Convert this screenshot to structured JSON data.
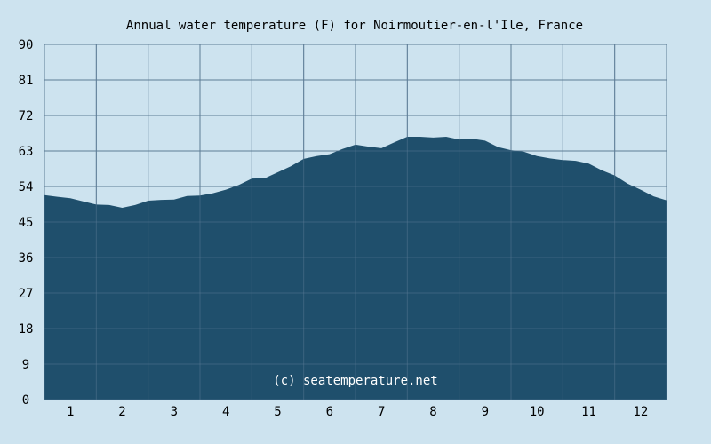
{
  "chart_data": {
    "type": "area",
    "title": "Annual water temperature (F) for Noirmoutier-en-l'Ile, France",
    "xlabel": "",
    "ylabel": "",
    "x_ticks": [
      "1",
      "2",
      "3",
      "4",
      "5",
      "6",
      "7",
      "8",
      "9",
      "10",
      "11",
      "12"
    ],
    "y_ticks": [
      "0",
      "9",
      "18",
      "27",
      "36",
      "45",
      "54",
      "63",
      "72",
      "81",
      "90"
    ],
    "xlim": [
      0.5,
      12.5
    ],
    "ylim": [
      0,
      90
    ],
    "grid": true,
    "x": [
      0.5,
      0.75,
      1.0,
      1.25,
      1.5,
      1.75,
      2.0,
      2.25,
      2.5,
      2.75,
      3.0,
      3.25,
      3.5,
      3.75,
      4.0,
      4.25,
      4.5,
      4.75,
      5.0,
      5.25,
      5.5,
      5.75,
      6.0,
      6.25,
      6.5,
      6.75,
      7.0,
      7.25,
      7.5,
      7.75,
      8.0,
      8.25,
      8.5,
      8.75,
      9.0,
      9.25,
      9.5,
      9.75,
      10.0,
      10.25,
      10.5,
      10.75,
      11.0,
      11.25,
      11.5,
      11.75,
      12.0,
      12.25,
      12.5
    ],
    "values": [
      51.8,
      51.4,
      51.0,
      50.2,
      49.4,
      49.3,
      48.6,
      49.3,
      50.4,
      50.6,
      50.7,
      51.6,
      51.7,
      52.3,
      53.2,
      54.4,
      56.0,
      56.1,
      57.6,
      59.1,
      61.0,
      61.7,
      62.2,
      63.5,
      64.6,
      64.1,
      63.7,
      65.2,
      66.6,
      66.6,
      66.4,
      66.6,
      65.9,
      66.1,
      65.6,
      64.0,
      63.2,
      62.8,
      61.7,
      61.1,
      60.7,
      60.5,
      59.8,
      58.1,
      56.8,
      54.7,
      53.2,
      51.5,
      50.5
    ],
    "fill_color": "#1f4f6c",
    "background_color": "#cde3ef",
    "grid_color": "#5e7d96",
    "annotation": "(c) seatemperature.net"
  }
}
